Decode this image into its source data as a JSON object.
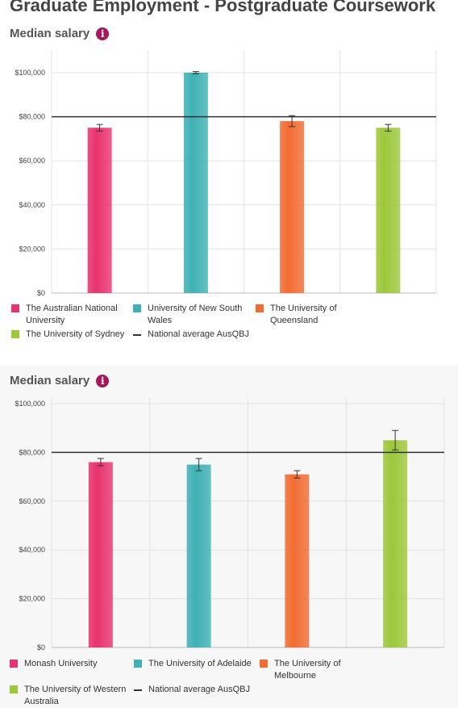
{
  "page": {
    "title": "Graduate Employment - Postgraduate Coursework"
  },
  "colors": {
    "pink": "#e8336f",
    "teal": "#3fb1b4",
    "orange": "#f26c32",
    "green": "#9cc83a",
    "line": "#333333",
    "info": "#a3195b"
  },
  "chart_data": [
    {
      "type": "bar",
      "title": "Median salary",
      "info_icon": "info-icon",
      "ylim": [
        0,
        100000
      ],
      "yticks": [
        0,
        20000,
        40000,
        60000,
        80000,
        100000
      ],
      "ytick_labels": [
        "$0",
        "$20,000",
        "$40,000",
        "$60,000",
        "$80,000",
        "$100,000"
      ],
      "grid": true,
      "legend_position": "bottom",
      "reference_line": {
        "name": "National average AusQBJ",
        "value": 80000
      },
      "series": [
        {
          "name": "The Australian National University",
          "value": 75000,
          "error": [
            73500,
            76500
          ],
          "color": "pink"
        },
        {
          "name": "University of New South Wales",
          "value": 100000,
          "error": [
            99500,
            100500
          ],
          "color": "teal"
        },
        {
          "name": "The University of Queensland",
          "value": 78000,
          "error": [
            75500,
            80500
          ],
          "color": "orange"
        },
        {
          "name": "The University of Sydney",
          "value": 75000,
          "error": [
            73500,
            76500
          ],
          "color": "green"
        }
      ]
    },
    {
      "type": "bar",
      "title": "Median salary",
      "info_icon": "info-icon",
      "ylim": [
        0,
        100000
      ],
      "yticks": [
        0,
        20000,
        40000,
        60000,
        80000,
        100000
      ],
      "ytick_labels": [
        "$0",
        "$20,000",
        "$40,000",
        "$60,000",
        "$80,000",
        "$100,000"
      ],
      "grid": true,
      "legend_position": "bottom",
      "reference_line": {
        "name": "National average AusQBJ",
        "value": 80000
      },
      "series": [
        {
          "name": "Monash University",
          "value": 76000,
          "error": [
            74500,
            77500
          ],
          "color": "pink"
        },
        {
          "name": "The University of Adelaide",
          "value": 75000,
          "error": [
            72500,
            77500
          ],
          "color": "teal"
        },
        {
          "name": "The University of Melbourne",
          "value": 71000,
          "error": [
            69500,
            72500
          ],
          "color": "orange"
        },
        {
          "name": "The University of Western Australia",
          "value": 85000,
          "error": [
            81000,
            89000
          ],
          "color": "green"
        }
      ]
    }
  ]
}
